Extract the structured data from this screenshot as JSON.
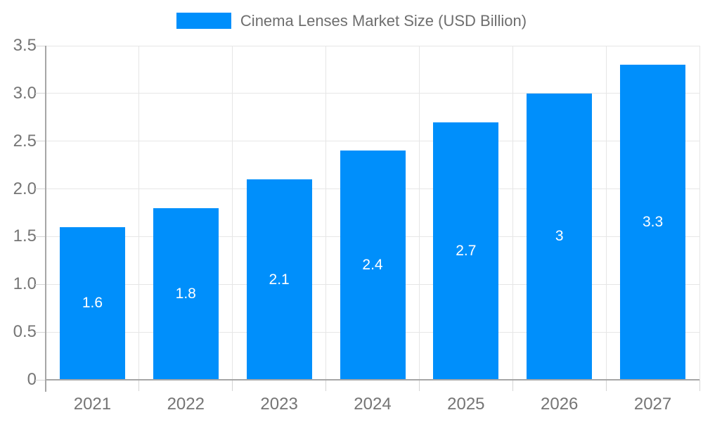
{
  "chart_data": {
    "type": "bar",
    "title": "Cinema Lenses Market Size (USD Billion)",
    "categories": [
      "2021",
      "2022",
      "2023",
      "2024",
      "2025",
      "2026",
      "2027"
    ],
    "values": [
      1.6,
      1.8,
      2.1,
      2.4,
      2.7,
      3,
      3.3
    ],
    "value_labels": [
      "1.6",
      "1.8",
      "2.1",
      "2.4",
      "2.7",
      "3",
      "3.3"
    ],
    "ytick_labels": [
      "0",
      "0.5",
      "1.0",
      "1.5",
      "2.0",
      "2.5",
      "3.0",
      "3.5"
    ],
    "ytick_values": [
      0,
      0.5,
      1,
      1.5,
      2,
      2.5,
      3,
      3.5
    ],
    "ylim": [
      0,
      3.5
    ],
    "xlabel": "",
    "ylabel": "",
    "grid": true,
    "legend_position": "top",
    "colors": {
      "bar": "#008FFB",
      "axis_label": "#757575",
      "legend_text": "#6e6e6e",
      "gridline": "#e6e6e6",
      "tick": "#d4d4d4",
      "axis_line": "#a6a6a6",
      "value_label": "#ffffff",
      "background": "#ffffff"
    }
  }
}
